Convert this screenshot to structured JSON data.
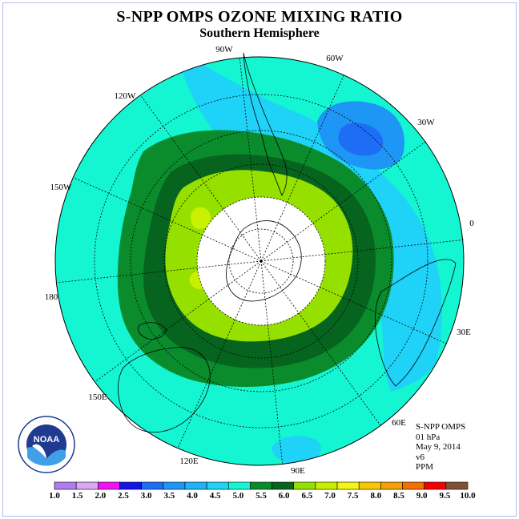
{
  "header": {
    "title": "S-NPP OMPS OZONE MIXING RATIO",
    "subtitle": "Southern Hemisphere"
  },
  "map": {
    "projection": "south-polar-stereographic",
    "longitude_labels": [
      "90W",
      "60W",
      "30W",
      "0",
      "30E",
      "60E",
      "90E",
      "120E",
      "150E",
      "180",
      "150W",
      "120W"
    ],
    "polar_no_data_disk": true
  },
  "info": {
    "instrument": "S-NPP OMPS",
    "level": "01 hPa",
    "date": "May 9, 2014",
    "version": "v6",
    "units": "PPM"
  },
  "logo": {
    "text": "NOAA"
  },
  "colorbar": {
    "tick_labels": [
      "1.0",
      "1.5",
      "2.0",
      "2.5",
      "3.0",
      "3.5",
      "4.0",
      "4.5",
      "5.0",
      "5.5",
      "6.0",
      "6.5",
      "7.0",
      "7.5",
      "8.0",
      "8.5",
      "9.0",
      "9.5",
      "10.0"
    ],
    "colors": [
      "#b07cf0",
      "#d8a8f4",
      "#f014f0",
      "#1414e6",
      "#1e6ef5",
      "#1e96f5",
      "#1eb4f5",
      "#1ed2f8",
      "#14f5d2",
      "#0a8c2d",
      "#06641e",
      "#96e000",
      "#c8f000",
      "#f5f514",
      "#f5c800",
      "#f5a000",
      "#f56e00",
      "#f50000",
      "#825032"
    ]
  }
}
